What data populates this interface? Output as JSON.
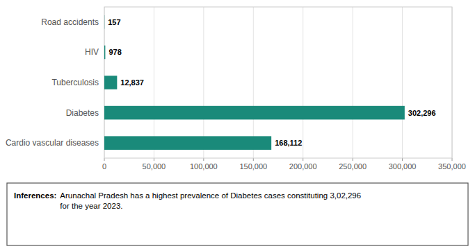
{
  "chart_data": {
    "type": "bar",
    "orientation": "horizontal",
    "categories": [
      "Cardio vascular diseases",
      "Diabetes",
      "Tuberculosis",
      "HIV",
      "Road accidents"
    ],
    "values": [
      168112,
      302296,
      12837,
      978,
      157
    ],
    "value_labels": [
      "168,112",
      "302,296",
      "12,837",
      "978",
      "157"
    ],
    "data_labels": true,
    "color": "#1a8a7a",
    "xlim": [
      0,
      350000
    ],
    "xticks": [
      0,
      {
        "value": 50000,
        "label": "50,000"
      },
      {
        "value": 100000,
        "label": "100,000"
      },
      {
        "value": 150000,
        "label": "150,000"
      },
      {
        "value": 200000,
        "label": "200,000"
      },
      {
        "value": 250000,
        "label": "250,000"
      },
      {
        "value": 300000,
        "label": "300,000"
      },
      {
        "value": 350000,
        "label": "350,000"
      }
    ],
    "grid": true,
    "annotations": [
      "Inferences:",
      "Arunachal Pradesh has a highest prevalence of Diabetes cases constituting 3,02,296\nfor the year 2023."
    ]
  }
}
